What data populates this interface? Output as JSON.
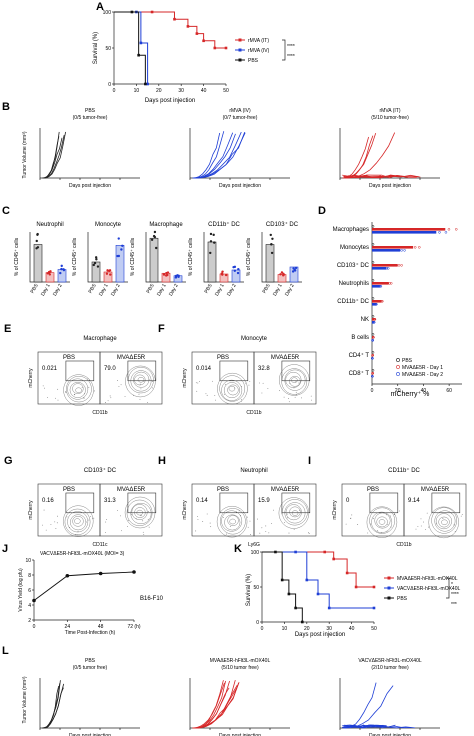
{
  "panels": {
    "A": {
      "letter": "A",
      "ylabel": "Survival (%)",
      "xlabel": "Days post injection",
      "yticks": [
        "100",
        "50",
        "0"
      ],
      "xticks": [
        "0",
        "10",
        "20",
        "30",
        "40",
        "50"
      ],
      "legend": [
        "rMVA (IT)",
        "rMVA (IV)",
        "PBS"
      ],
      "sig": [
        "****",
        "****"
      ]
    },
    "B": {
      "letter": "B",
      "ylabel": "Tumor Volume (mm³)",
      "xlabel": "Days post injection",
      "groups": [
        {
          "name": "PBS",
          "sub": "(0/5 tumor-free)"
        },
        {
          "name": "rMVA (IV)",
          "sub": "(0/7 tumor-free)"
        },
        {
          "name": "rMVA (IT)",
          "sub": "(5/10 tumor-free)"
        }
      ]
    },
    "C": {
      "letter": "C",
      "ylabel": "% of CD45⁺ cells",
      "subplots": [
        {
          "title": "Neutrophil"
        },
        {
          "title": "Monocyte"
        },
        {
          "title": "Macrophage"
        },
        {
          "title": "CD11b⁺ DC"
        },
        {
          "title": "CD103⁺ DC"
        }
      ],
      "xcats": [
        "PBS",
        "Day 1",
        "Day 2"
      ]
    },
    "D": {
      "letter": "D",
      "xlabel": "mCherry⁺ %",
      "xticks": [
        "0",
        "20",
        "40",
        "60"
      ],
      "rows": [
        "Macrophages",
        "Monocytes",
        "CD103⁺ DC",
        "Neutrophils",
        "CD11b⁺ DC",
        "NK",
        "B cells",
        "CD4⁺ T",
        "CD8⁺ T"
      ],
      "legend": [
        "PBS",
        "MVAΔE5R - Day 1",
        "MVAΔE5R - Day 2"
      ]
    },
    "E": {
      "letter": "E",
      "title": "Macrophage",
      "left": "PBS",
      "right": "MVAΔE5R",
      "lv": "0.021",
      "rv": "79.0",
      "ylabel": "mCherry",
      "xlabel": "CD11b"
    },
    "F": {
      "letter": "F",
      "title": "Monocyte",
      "left": "PBS",
      "right": "MVAΔE5R",
      "lv": "0.014",
      "rv": "32.8",
      "ylabel": "mCherry",
      "xlabel": "CD11b"
    },
    "G": {
      "letter": "G",
      "title": "CD103⁺ DC",
      "left": "PBS",
      "right": "MVAΔE5R",
      "lv": "0.16",
      "rv": "31.3",
      "ylabel": "mCherry",
      "xlabel": "CD11c"
    },
    "H": {
      "letter": "H",
      "title": "Neutrophil",
      "left": "PBS",
      "right": "MVAΔE5R",
      "lv": "0.14",
      "rv": "15.9",
      "ylabel": "mCherry",
      "xlabel": "Ly6G"
    },
    "I": {
      "letter": "I",
      "title": "CD11b⁺ DC",
      "left": "PBS",
      "right": "MVAΔE5R",
      "lv": "0",
      "rv": "9.14",
      "ylabel": "mCherry",
      "xlabel": "CD11b"
    },
    "J": {
      "letter": "J",
      "title": "VACVΔE5R-hFlt3L-mOX40L (MOI= 3)",
      "ylabel": "Virus Yield (log pfu)",
      "xlabel": "Time Post-Infection (h)",
      "xticks": [
        "0",
        "24",
        "48",
        "72 (h)"
      ],
      "yticks": [
        "10",
        "8",
        "6",
        "4",
        "2"
      ],
      "cell": "B16-F10"
    },
    "K": {
      "letter": "K",
      "ylabel": "Survival (%)",
      "xlabel": "Days post injection",
      "yticks": [
        "100",
        "50",
        "0"
      ],
      "xticks": [
        "0",
        "10",
        "20",
        "30",
        "40",
        "50"
      ],
      "legend": [
        "MVAΔE5R-hFlt3L-mOX40L",
        "VACVΔE5R-hFlt3L-mOX40L",
        "PBS"
      ],
      "sig": [
        "*",
        "****",
        "***"
      ]
    },
    "L": {
      "letter": "L",
      "ylabel": "Tumor Volume (mm³)",
      "xlabel": "Days post injection",
      "groups": [
        {
          "name": "PBS",
          "sub": "(0/5 tumor free)"
        },
        {
          "name": "MVAΔE5R-hFlt3L-mOX40L",
          "sub": "(5/10 tumor free)"
        },
        {
          "name": "VACVΔE5R-hFlt3L-mOX40L",
          "sub": "(2/10 tumor free)"
        }
      ]
    }
  },
  "chart_data": [
    {
      "type": "line",
      "panel": "A",
      "ylabel": "Survival (%)",
      "xlabel": "Days post injection",
      "xlim": [
        0,
        50
      ],
      "ylim": [
        0,
        100
      ],
      "series": [
        {
          "name": "rMVA (IT)",
          "color": "#d62728",
          "x": [
            0,
            17,
            27,
            33,
            37,
            40,
            45,
            50
          ],
          "y": [
            100,
            100,
            90,
            80,
            70,
            60,
            50,
            50
          ]
        },
        {
          "name": "rMVA (IV)",
          "color": "#1f3fd6",
          "x": [
            0,
            10,
            12,
            15
          ],
          "y": [
            100,
            100,
            57,
            0
          ]
        },
        {
          "name": "PBS",
          "color": "#111111",
          "x": [
            0,
            8,
            11,
            14
          ],
          "y": [
            100,
            100,
            40,
            0
          ]
        }
      ]
    },
    {
      "type": "scatter",
      "panel": "D",
      "xlabel": "mCherry⁺ %",
      "xlim": [
        0,
        70
      ],
      "categories": [
        "Macrophages",
        "Monocytes",
        "CD103⁺ DC",
        "Neutrophils",
        "CD11b⁺ DC",
        "NK",
        "B cells",
        "CD4⁺ T",
        "CD8⁺ T"
      ],
      "series": [
        {
          "name": "PBS",
          "color": "#111111",
          "values": [
            0,
            0,
            0,
            0,
            0,
            0,
            0,
            0,
            0
          ]
        },
        {
          "name": "MVAΔE5R - Day 1",
          "color": "#d62728",
          "values": [
            57,
            32,
            20,
            13,
            7,
            2,
            1,
            0.5,
            0.5
          ]
        },
        {
          "name": "MVAΔE5R - Day 2",
          "color": "#1f3fd6",
          "values": [
            50,
            22,
            11,
            6,
            3,
            1.5,
            0.5,
            0.3,
            0.3
          ]
        }
      ]
    },
    {
      "type": "line",
      "panel": "J",
      "xlabel": "Time Post-Infection (h)",
      "ylabel": "Virus Yield (log pfu)",
      "xlim": [
        0,
        72
      ],
      "ylim": [
        2,
        10
      ],
      "series": [
        {
          "name": "B16-F10",
          "color": "#111111",
          "x": [
            0,
            24,
            48,
            72
          ],
          "y": [
            4.6,
            7.9,
            8.2,
            8.4
          ]
        }
      ]
    },
    {
      "type": "line",
      "panel": "K",
      "ylabel": "Survival (%)",
      "xlabel": "Days post injection",
      "xlim": [
        0,
        50
      ],
      "ylim": [
        0,
        100
      ],
      "series": [
        {
          "name": "MVAΔE5R-hFlt3L-mOX40L",
          "color": "#d62728",
          "x": [
            0,
            28,
            32,
            38,
            42,
            50
          ],
          "y": [
            100,
            100,
            90,
            70,
            50,
            50
          ]
        },
        {
          "name": "VACVΔE5R-hFlt3L-mOX40L",
          "color": "#1f3fd6",
          "x": [
            0,
            15,
            20,
            25,
            30,
            50
          ],
          "y": [
            100,
            100,
            60,
            40,
            20,
            20
          ]
        },
        {
          "name": "PBS",
          "color": "#111111",
          "x": [
            0,
            6,
            9,
            12,
            15,
            18
          ],
          "y": [
            100,
            100,
            60,
            40,
            20,
            0
          ]
        }
      ]
    }
  ]
}
